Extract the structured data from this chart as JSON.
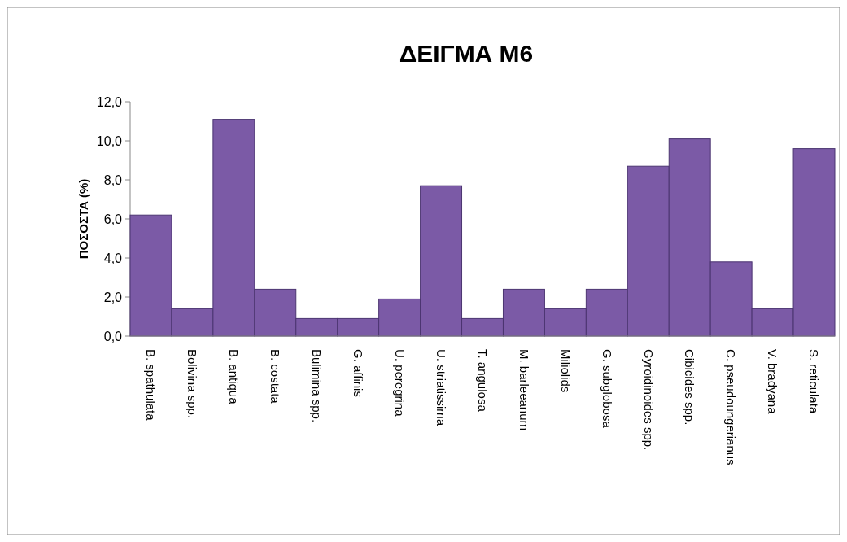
{
  "chart_data": {
    "type": "bar",
    "title": "ΔΕΙΓΜΑ Μ6",
    "ylabel": "ΠΟΣΟΣΤΑ (%)",
    "categories": [
      "B. spathulata",
      "Bolivina spp.",
      "B. antiqua",
      "B. costata",
      "Bulimina spp.",
      "G. affinis",
      "U. peregrina",
      "U. striatissima",
      "T. angulosa",
      "M. barleeanum",
      "Miliolids",
      "G. subglobosa",
      "Gyroidinoides spp.",
      "Cibicides spp.",
      "C. pseudoungerianus",
      "V. bradyana",
      "S. reticulata"
    ],
    "values": [
      6.2,
      1.4,
      11.1,
      2.4,
      0.9,
      0.9,
      1.9,
      7.7,
      0.9,
      2.4,
      1.4,
      2.4,
      8.7,
      10.1,
      3.8,
      1.4,
      9.6
    ],
    "color": "#7b5aa6",
    "ylim": [
      0,
      12
    ],
    "yticks": [
      {
        "value": 0,
        "label": "0,0"
      },
      {
        "value": 2,
        "label": "2,0"
      },
      {
        "value": 4,
        "label": "4,0"
      },
      {
        "value": 6,
        "label": "6,0"
      },
      {
        "value": 8,
        "label": "8,0"
      },
      {
        "value": 10,
        "label": "10,0"
      },
      {
        "value": 12,
        "label": "12,0"
      }
    ]
  }
}
